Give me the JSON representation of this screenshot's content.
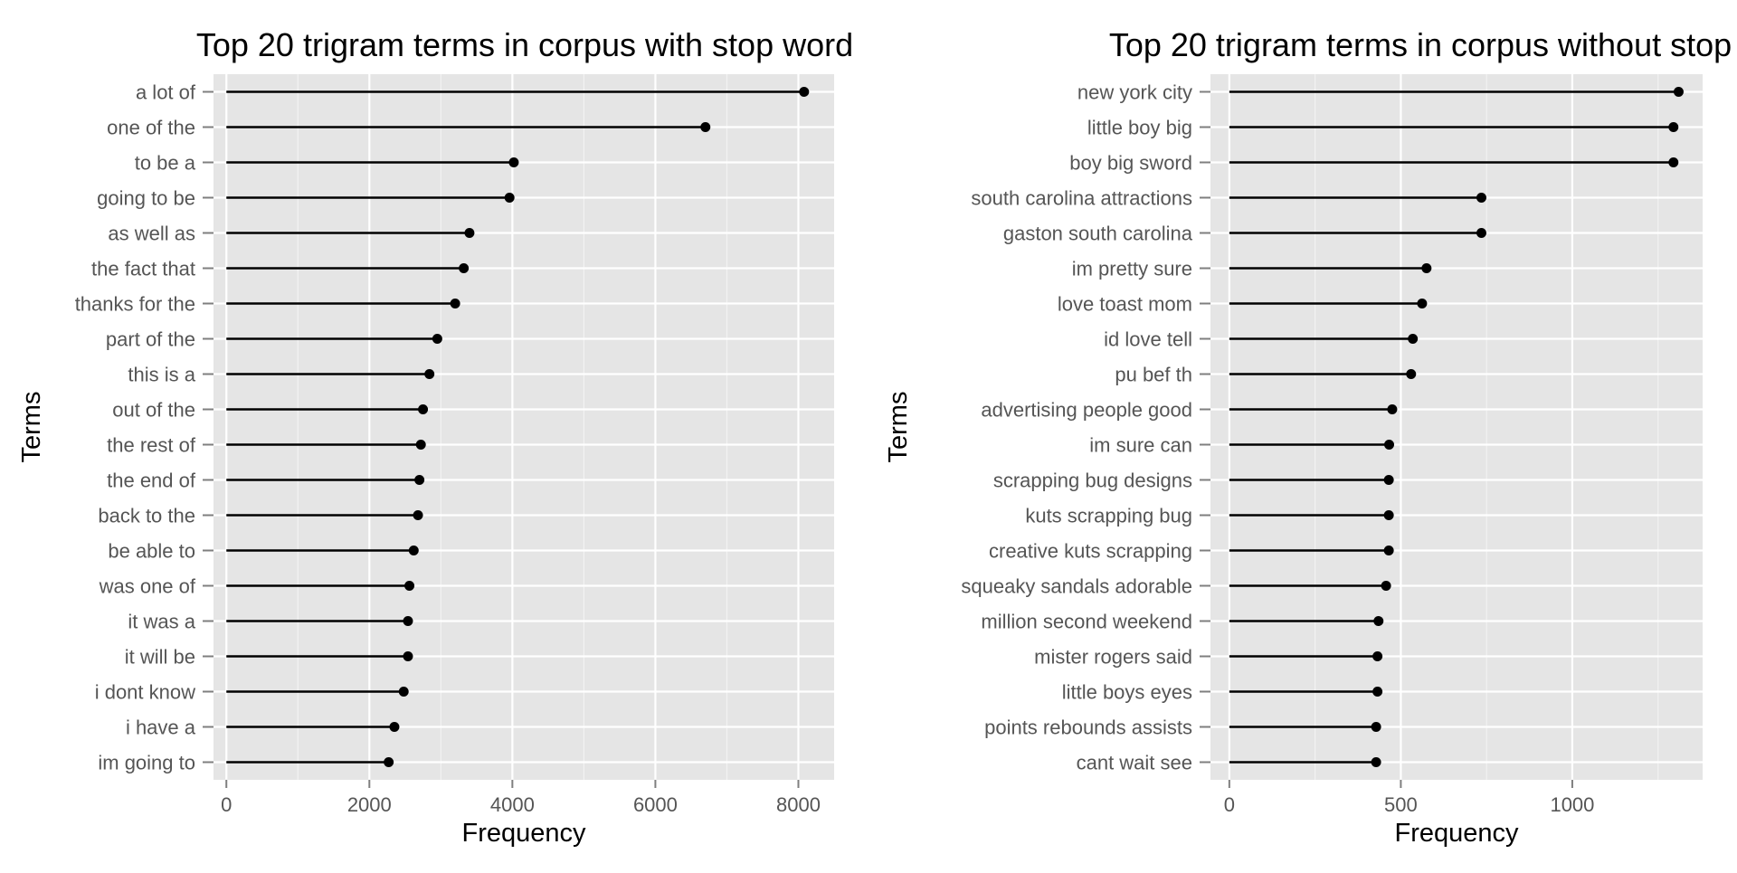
{
  "chart_data": [
    {
      "type": "lollipop",
      "title": "Top 20 trigram terms in corpus with stop word",
      "xlabel": "Frequency",
      "ylabel": "Terms",
      "xlim": [
        -180,
        8500
      ],
      "xticks": [
        0,
        2000,
        4000,
        6000,
        8000
      ],
      "grid": true,
      "categories": [
        "a lot of",
        "one of the",
        "to be a",
        "going to be",
        "as well as",
        "the fact that",
        "thanks for the",
        "part of the",
        "this is a",
        "out of the",
        "the rest of",
        "the end of",
        "back to the",
        "be able to",
        "was one of",
        "it was a",
        "it will be",
        "i dont know",
        "i have a",
        "im going to"
      ],
      "values": [
        8080,
        6700,
        4020,
        3960,
        3400,
        3320,
        3200,
        2950,
        2840,
        2750,
        2720,
        2700,
        2680,
        2620,
        2560,
        2540,
        2540,
        2480,
        2350,
        2270
      ]
    },
    {
      "type": "lollipop",
      "title": "Top 20 trigram terms in corpus without stop",
      "xlabel": "Frequency",
      "ylabel": "Terms",
      "xlim": [
        -55,
        1380
      ],
      "xticks": [
        0,
        500,
        1000
      ],
      "grid": true,
      "categories": [
        "new york city",
        "little boy big",
        "boy big sword",
        "south carolina attractions",
        "gaston south carolina",
        "im pretty sure",
        "love toast mom",
        "id love tell",
        "pu bef th",
        "advertising people good",
        "im sure can",
        "scrapping bug designs",
        "kuts scrapping bug",
        "creative kuts scrapping",
        "squeaky sandals adorable",
        "million second weekend",
        "mister rogers said",
        "little boys eyes",
        "points rebounds assists",
        "cant wait see"
      ],
      "values": [
        1310,
        1295,
        1295,
        735,
        735,
        575,
        562,
        535,
        530,
        475,
        466,
        465,
        465,
        465,
        457,
        435,
        432,
        432,
        428,
        428
      ]
    }
  ]
}
